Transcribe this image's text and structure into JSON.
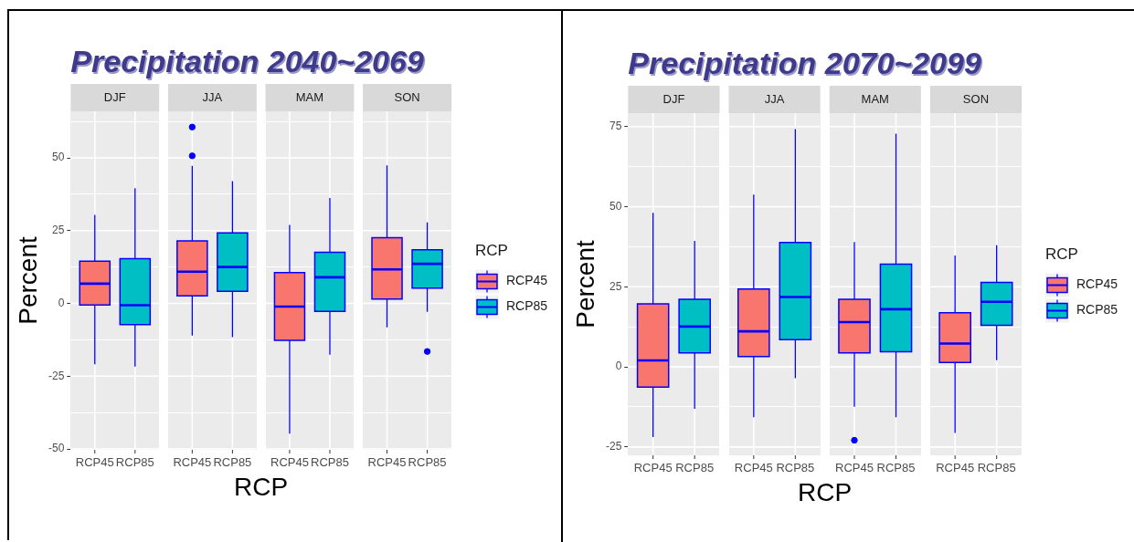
{
  "chart_data": [
    {
      "type": "box",
      "title": "Precipitation 2040~2069",
      "xlabel": "RCP",
      "ylabel": "Percent",
      "legend_title": "RCP",
      "legend": "right",
      "grid": true,
      "categories": [
        "DJF",
        "JJA",
        "MAM",
        "SON"
      ],
      "series": [
        {
          "name": "RCP45",
          "color": "#f8766d",
          "boxes": [
            {
              "low": -20.9,
              "q1": -0.5,
              "median": 6.8,
              "q3": 14.5,
              "high": 30.4
            },
            {
              "low": -11,
              "q1": 2.6,
              "median": 10.9,
              "q3": 21.5,
              "high": 47.3,
              "outliers": [
                50.7,
                60.6
              ]
            },
            {
              "low": -44.7,
              "q1": -12.7,
              "median": -1.1,
              "q3": 10.6,
              "high": 27
            },
            {
              "low": -8.2,
              "q1": 1.5,
              "median": 11.7,
              "q3": 22.6,
              "high": 47.4
            }
          ]
        },
        {
          "name": "RCP85",
          "color": "#00bfc4",
          "boxes": [
            {
              "low": -21.7,
              "q1": -7.3,
              "median": -0.6,
              "q3": 15.4,
              "high": 39.6
            },
            {
              "low": -11.6,
              "q1": 4.2,
              "median": 12.5,
              "q3": 24.2,
              "high": 42
            },
            {
              "low": -17.6,
              "q1": -2.7,
              "median": 9,
              "q3": 17.6,
              "high": 36.2
            },
            {
              "low": -2.9,
              "q1": 5.3,
              "median": 13.6,
              "q3": 18.4,
              "high": 27.8,
              "outliers": [
                -16.5
              ]
            }
          ]
        }
      ],
      "ylim": [
        -50.3,
        66
      ],
      "yticks": [
        -50,
        -25,
        0,
        25,
        50
      ]
    },
    {
      "type": "box",
      "title": "Precipitation 2070~2099",
      "xlabel": "RCP",
      "ylabel": "Percent",
      "legend_title": "RCP",
      "legend": "right",
      "grid": true,
      "categories": [
        "DJF",
        "JJA",
        "MAM",
        "SON"
      ],
      "series": [
        {
          "name": "RCP45",
          "color": "#f8766d",
          "boxes": [
            {
              "low": -21.9,
              "q1": -6.3,
              "median": 2,
              "q3": 19.7,
              "high": 48.1
            },
            {
              "low": -15.7,
              "q1": 3.2,
              "median": 11.1,
              "q3": 24.3,
              "high": 53.8
            },
            {
              "low": -12.4,
              "q1": 4.4,
              "median": 14,
              "q3": 21.1,
              "high": 39,
              "outliers": [
                -22.9
              ]
            },
            {
              "low": -20.6,
              "q1": 1.4,
              "median": 7.3,
              "q3": 16.9,
              "high": 34.8
            }
          ]
        },
        {
          "name": "RCP85",
          "color": "#00bfc4",
          "boxes": [
            {
              "low": -13.1,
              "q1": 4.4,
              "median": 12.6,
              "q3": 21.1,
              "high": 39.3
            },
            {
              "low": -3.5,
              "q1": 8.5,
              "median": 21.8,
              "q3": 38.8,
              "high": 74.2
            },
            {
              "low": -15.7,
              "q1": 4.7,
              "median": 18,
              "q3": 32.1,
              "high": 72.8
            },
            {
              "low": 2.1,
              "q1": 13,
              "median": 20.3,
              "q3": 26.4,
              "high": 38
            }
          ]
        }
      ],
      "ylim": [
        -27.6,
        79.2
      ],
      "yticks": [
        -25,
        0,
        25,
        50,
        75
      ]
    }
  ]
}
